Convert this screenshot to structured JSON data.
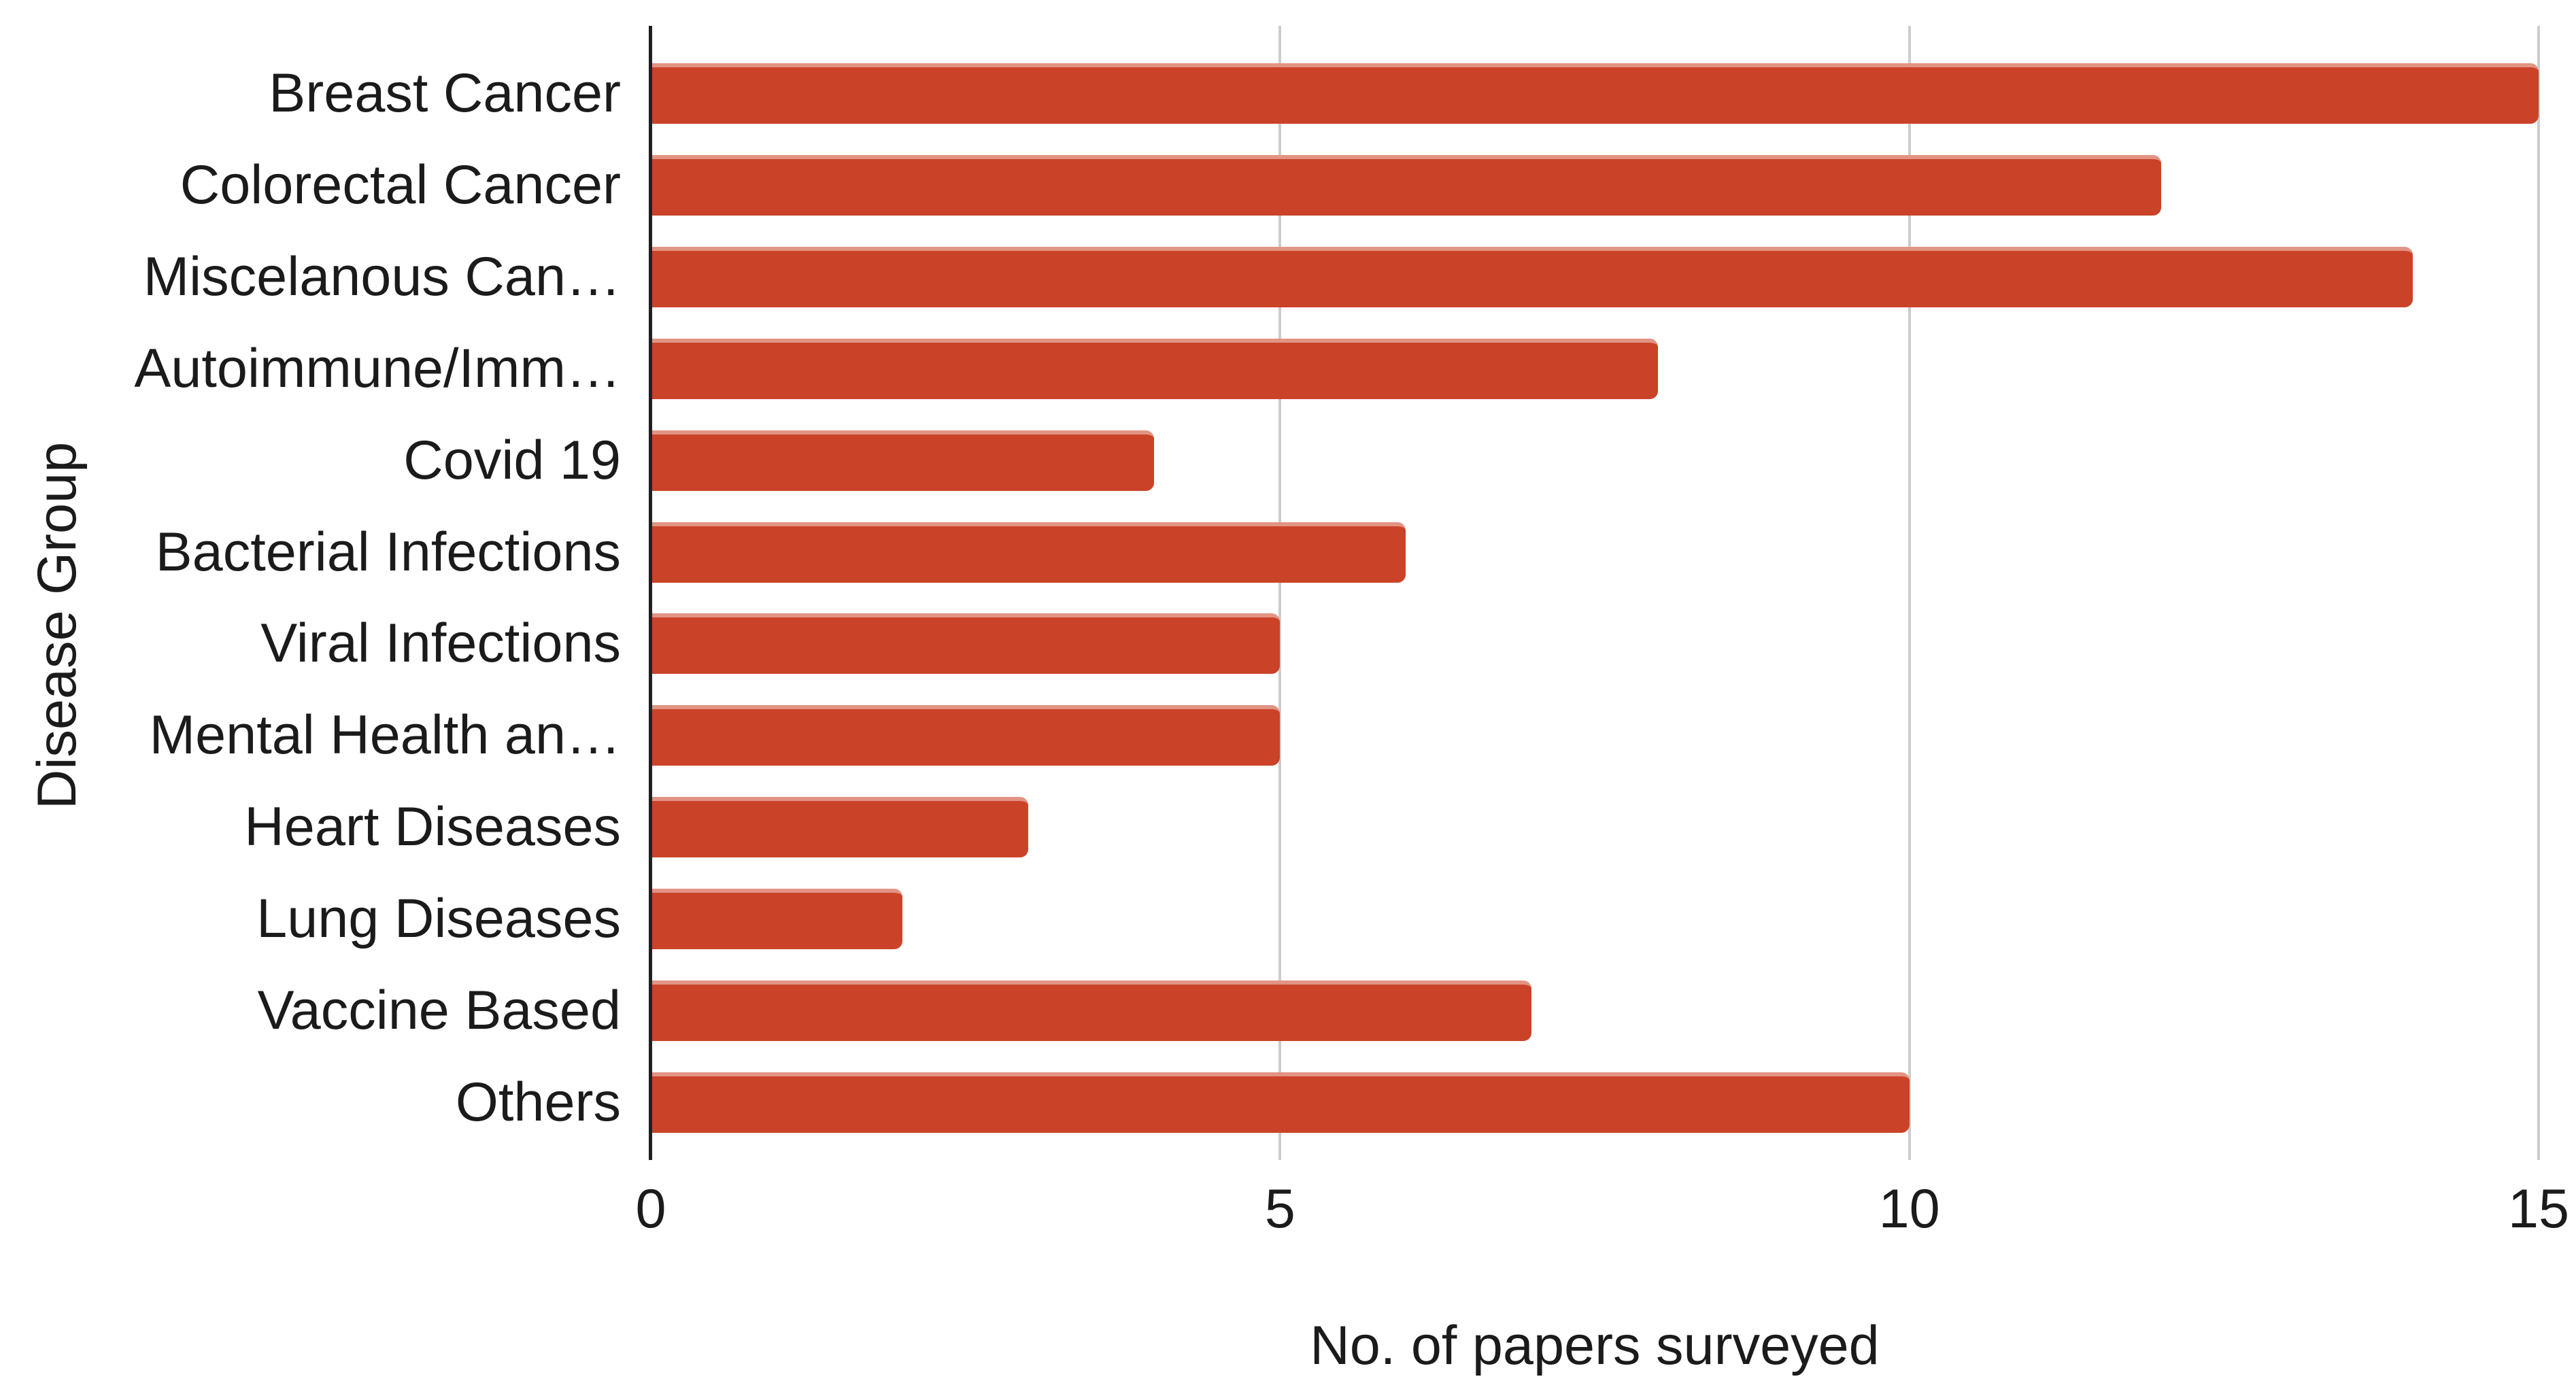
{
  "chart_data": {
    "type": "bar",
    "orientation": "horizontal",
    "title": "",
    "categories": [
      "Breast Cancer",
      "Colorectal Cancer",
      "Miscelanous Can…",
      "Autoimmune/Imm…",
      "Covid 19",
      "Bacterial Infections",
      "Viral Infections",
      "Mental Health an…",
      "Heart Diseases",
      "Lung Diseases",
      "Vaccine Based",
      "Others"
    ],
    "values": [
      15,
      12,
      14,
      8,
      4,
      6,
      5,
      5,
      3,
      2,
      7,
      10
    ],
    "series": [
      {
        "name": "No. of papers surveyed",
        "values": [
          15,
          12,
          14,
          8,
          4,
          6,
          5,
          5,
          3,
          2,
          7,
          10
        ]
      }
    ],
    "xlabel": "No. of papers surveyed",
    "ylabel": "Disease Group",
    "xlim": [
      0,
      15
    ],
    "xticks": [
      0,
      5,
      10,
      15
    ],
    "grid": "vertical gridlines at 5, 10, 15; dark vertical axis line at 0; no horizontal gridlines",
    "legend": "none",
    "colors": {
      "bar": "#ca4328",
      "bar_top_edge": "#e29484",
      "gridline": "#cccccc",
      "axis_line": "#202020",
      "text": "#1b1b1b",
      "background": "#ffffff"
    }
  }
}
